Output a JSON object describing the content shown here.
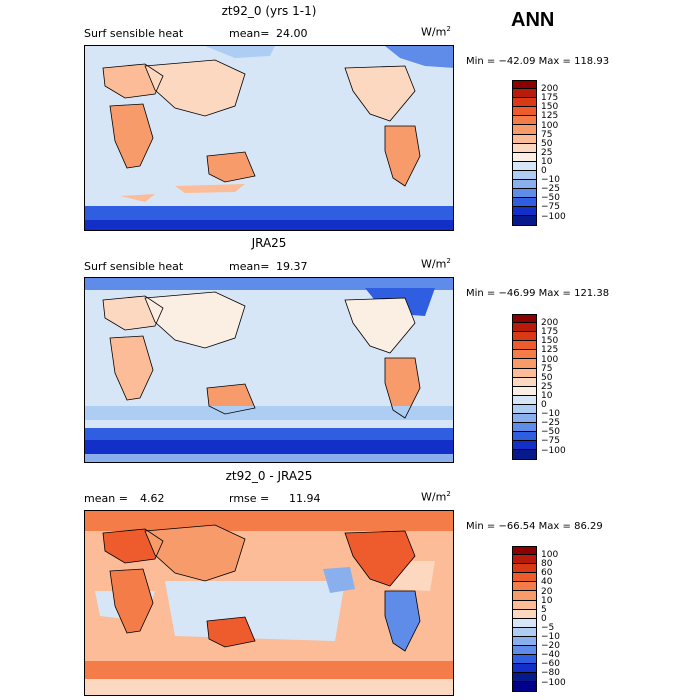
{
  "season": "ANN",
  "panels": [
    {
      "title": "zt92_0 (yrs 1-1)",
      "left_label": "Surf sensible heat",
      "mean_label": "mean=",
      "mean_value": "24.00",
      "rmse_label": "",
      "rmse_value": "",
      "units": "W/m",
      "units_sup": "2",
      "min_max": "Min = −42.09 Max = 118.93",
      "colorbar_levels": [
        "200",
        "175",
        "150",
        "125",
        "100",
        "75",
        "50",
        "25",
        "10",
        "0",
        "−10",
        "−25",
        "−50",
        "−75",
        "−100"
      ],
      "colorbar_colors": [
        "#8b0000",
        "#b81a0b",
        "#d93a15",
        "#ee5b2c",
        "#f47c48",
        "#f89b6b",
        "#fbbc97",
        "#fdd8c0",
        "#fbeee2",
        "#d7e6f7",
        "#aecdf2",
        "#8aafed",
        "#5f8ce8",
        "#2f5fe0",
        "#1230c8",
        "#061a8c"
      ]
    },
    {
      "title": "JRA25",
      "left_label": "Surf sensible heat",
      "mean_label": "mean=",
      "mean_value": "19.37",
      "rmse_label": "",
      "rmse_value": "",
      "units": "W/m",
      "units_sup": "2",
      "min_max": "Min = −46.99 Max = 121.38",
      "colorbar_levels": [
        "200",
        "175",
        "150",
        "125",
        "100",
        "75",
        "50",
        "25",
        "10",
        "0",
        "−10",
        "−25",
        "−50",
        "−75",
        "−100"
      ],
      "colorbar_colors": [
        "#8b0000",
        "#b81a0b",
        "#d93a15",
        "#ee5b2c",
        "#f47c48",
        "#f89b6b",
        "#fbbc97",
        "#fdd8c0",
        "#fbeee2",
        "#d7e6f7",
        "#aecdf2",
        "#8aafed",
        "#5f8ce8",
        "#2f5fe0",
        "#1230c8",
        "#061a8c"
      ]
    },
    {
      "title": "zt92_0 - JRA25",
      "left_label": "",
      "mean_label": "mean =",
      "mean_value": "4.62",
      "rmse_label": "rmse =",
      "rmse_value": "11.94",
      "units": "W/m",
      "units_sup": "2",
      "min_max": "Min = −66.54 Max =  86.29",
      "colorbar_levels": [
        "100",
        "80",
        "60",
        "40",
        "20",
        "10",
        "5",
        "0",
        "−5",
        "−10",
        "−20",
        "−40",
        "−60",
        "−80",
        "−100"
      ],
      "colorbar_colors": [
        "#8b0000",
        "#b81a0b",
        "#d93a15",
        "#ee5b2c",
        "#f47c48",
        "#f89b6b",
        "#fbbc97",
        "#fdd8c0",
        "#d7e6f7",
        "#aecdf2",
        "#8aafed",
        "#5f8ce8",
        "#2f5fe0",
        "#1230c8",
        "#061a8c",
        "#00008b"
      ]
    }
  ],
  "chart_data": [
    {
      "type": "heatmap",
      "title": "zt92_0 (yrs 1-1)",
      "variable": "Surf sensible heat",
      "mean": 24.0,
      "units": "W/m2",
      "min": -42.09,
      "max": 118.93,
      "levels": [
        -100,
        -75,
        -50,
        -25,
        -10,
        0,
        10,
        25,
        50,
        75,
        100,
        125,
        150,
        175,
        200
      ]
    },
    {
      "type": "heatmap",
      "title": "JRA25",
      "variable": "Surf sensible heat",
      "mean": 19.37,
      "units": "W/m2",
      "min": -46.99,
      "max": 121.38,
      "levels": [
        -100,
        -75,
        -50,
        -25,
        -10,
        0,
        10,
        25,
        50,
        75,
        100,
        125,
        150,
        175,
        200
      ]
    },
    {
      "type": "heatmap",
      "title": "zt92_0 - JRA25",
      "mean": 4.62,
      "rmse": 11.94,
      "units": "W/m2",
      "min": -66.54,
      "max": 86.29,
      "levels": [
        -100,
        -80,
        -60,
        -40,
        -20,
        -10,
        -5,
        0,
        5,
        10,
        20,
        40,
        60,
        80,
        100
      ]
    }
  ]
}
